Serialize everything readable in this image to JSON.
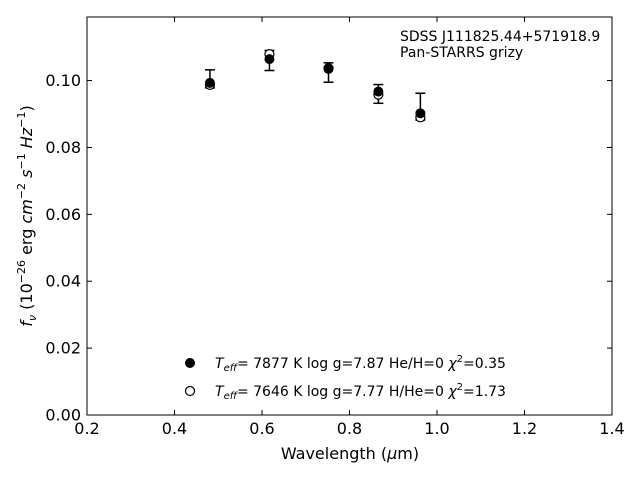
{
  "chart_data": {
    "type": "scatter",
    "xlabel": "Wavelength (μm)",
    "ylabel": "f_ν (10^-26 erg cm^-2 s^-1 Hz^-1)",
    "xlim": [
      0.2,
      1.4
    ],
    "ylim": [
      0.0,
      0.119
    ],
    "xticks": [
      "0.2",
      "0.4",
      "0.6",
      "0.8",
      "1.0",
      "1.2",
      "1.4"
    ],
    "yticks": [
      "0.00",
      "0.02",
      "0.04",
      "0.06",
      "0.08",
      "0.10"
    ],
    "grid": false,
    "annotations": [
      "SDSS J111825.44+571918.9",
      "Pan-STARRS grizy"
    ],
    "legend_position": "bottom-center",
    "observed": {
      "x": [
        0.481,
        0.617,
        0.752,
        0.866,
        0.962
      ],
      "y": [
        0.0997,
        0.106,
        0.1024,
        0.096,
        0.0902
      ],
      "err_low": [
        0.0978,
        0.103,
        0.0995,
        0.0932,
        0.0882
      ],
      "err_high": [
        0.1032,
        0.109,
        0.1053,
        0.0988,
        0.0962
      ]
    },
    "series": [
      {
        "name": "Teff= 7877 K log g=7.87 He/H=0 χ²=0.35",
        "marker": "filled-circle",
        "teff": "7877",
        "logg": "7.87",
        "comp": "He/H=0",
        "chi2": "0.35",
        "x": [
          0.481,
          0.617,
          0.752,
          0.866,
          0.962
        ],
        "y": [
          0.0993,
          0.1064,
          0.1035,
          0.0967,
          0.0902
        ]
      },
      {
        "name": "Teff= 7646 K log g=7.77 H/He=0 χ²=1.73",
        "marker": "open-circle",
        "teff": "7646",
        "logg": "7.77",
        "comp": "H/He=0",
        "chi2": "1.73",
        "x": [
          0.481,
          0.617,
          0.752,
          0.866,
          0.962
        ],
        "y": [
          0.0987,
          0.1079,
          0.1037,
          0.0958,
          0.089
        ]
      }
    ]
  }
}
